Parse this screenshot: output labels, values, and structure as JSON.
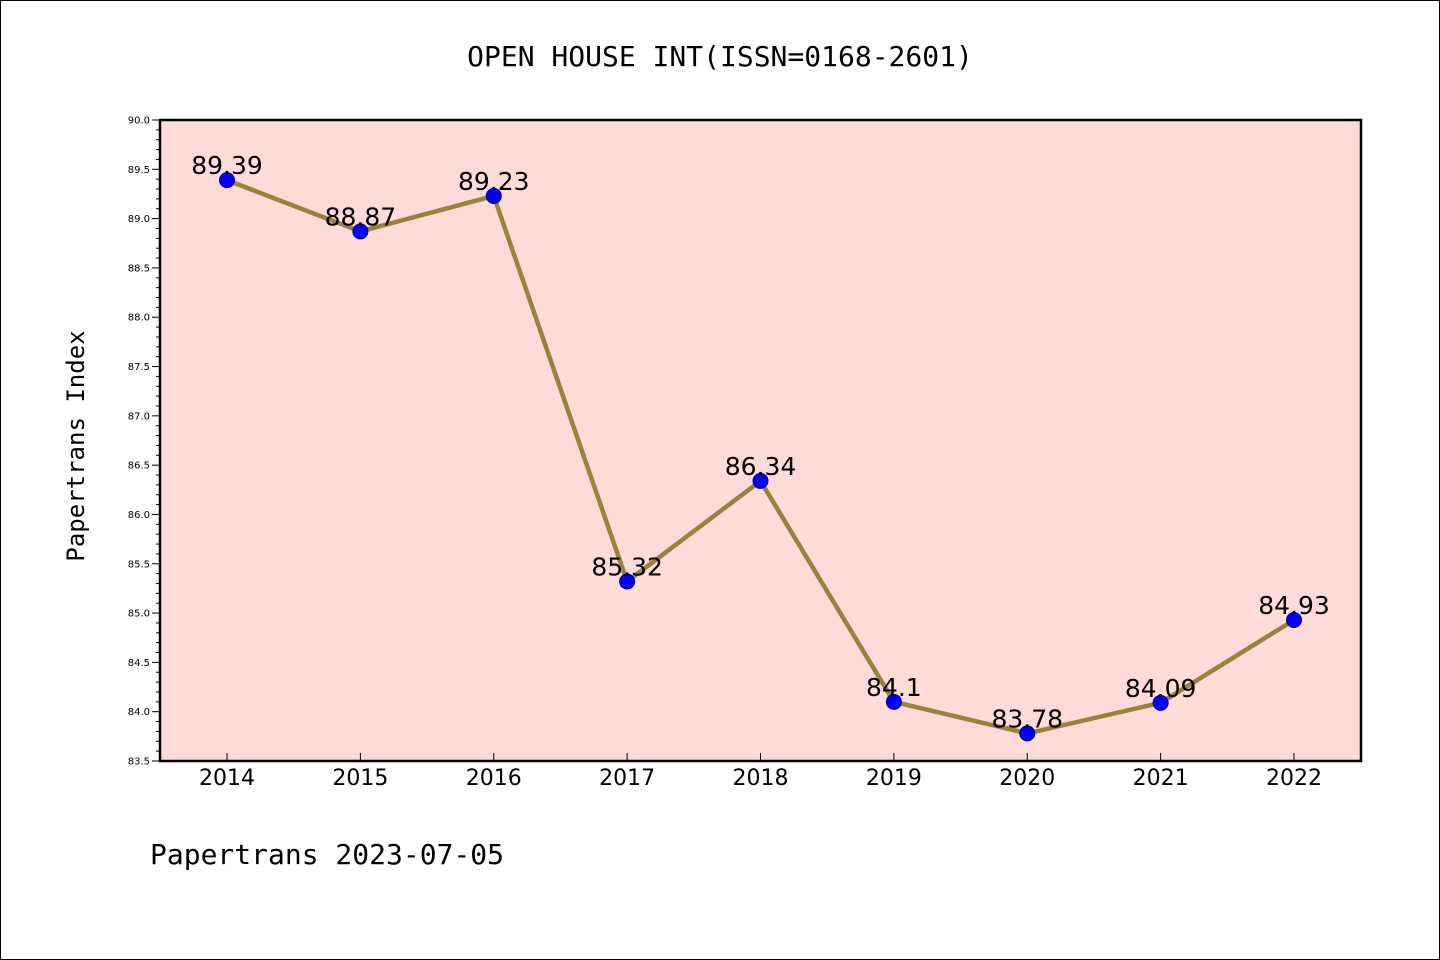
{
  "chart_data": {
    "type": "line",
    "title": "OPEN HOUSE INT(ISSN=0168-2601)",
    "xlabel": "",
    "ylabel": "Papertrans Index",
    "footer": "Papertrans 2023-07-05",
    "categories": [
      "2014",
      "2015",
      "2016",
      "2017",
      "2018",
      "2019",
      "2020",
      "2021",
      "2022"
    ],
    "series": [
      {
        "values": [
          89.39,
          88.87,
          89.23,
          85.32,
          86.34,
          84.1,
          83.78,
          84.09,
          84.93
        ],
        "labels": [
          "89.39",
          "88.87",
          "89.23",
          "85.32",
          "86.34",
          "84.1",
          "83.78",
          "84.09",
          "84.93"
        ]
      }
    ],
    "ylim": [
      83.5,
      90.0
    ],
    "yticks": [
      "83.5",
      "84.0",
      "84.5",
      "85.0",
      "85.5",
      "86.0",
      "86.5",
      "87.0",
      "87.5",
      "88.0",
      "88.5",
      "89.0",
      "89.5",
      "90.0"
    ],
    "grid": false,
    "legend": "none",
    "colors": {
      "plot_background": "#fddbd9",
      "line": "#99833b",
      "marker": "#0000ff",
      "marker_edge": "#00008b"
    }
  }
}
